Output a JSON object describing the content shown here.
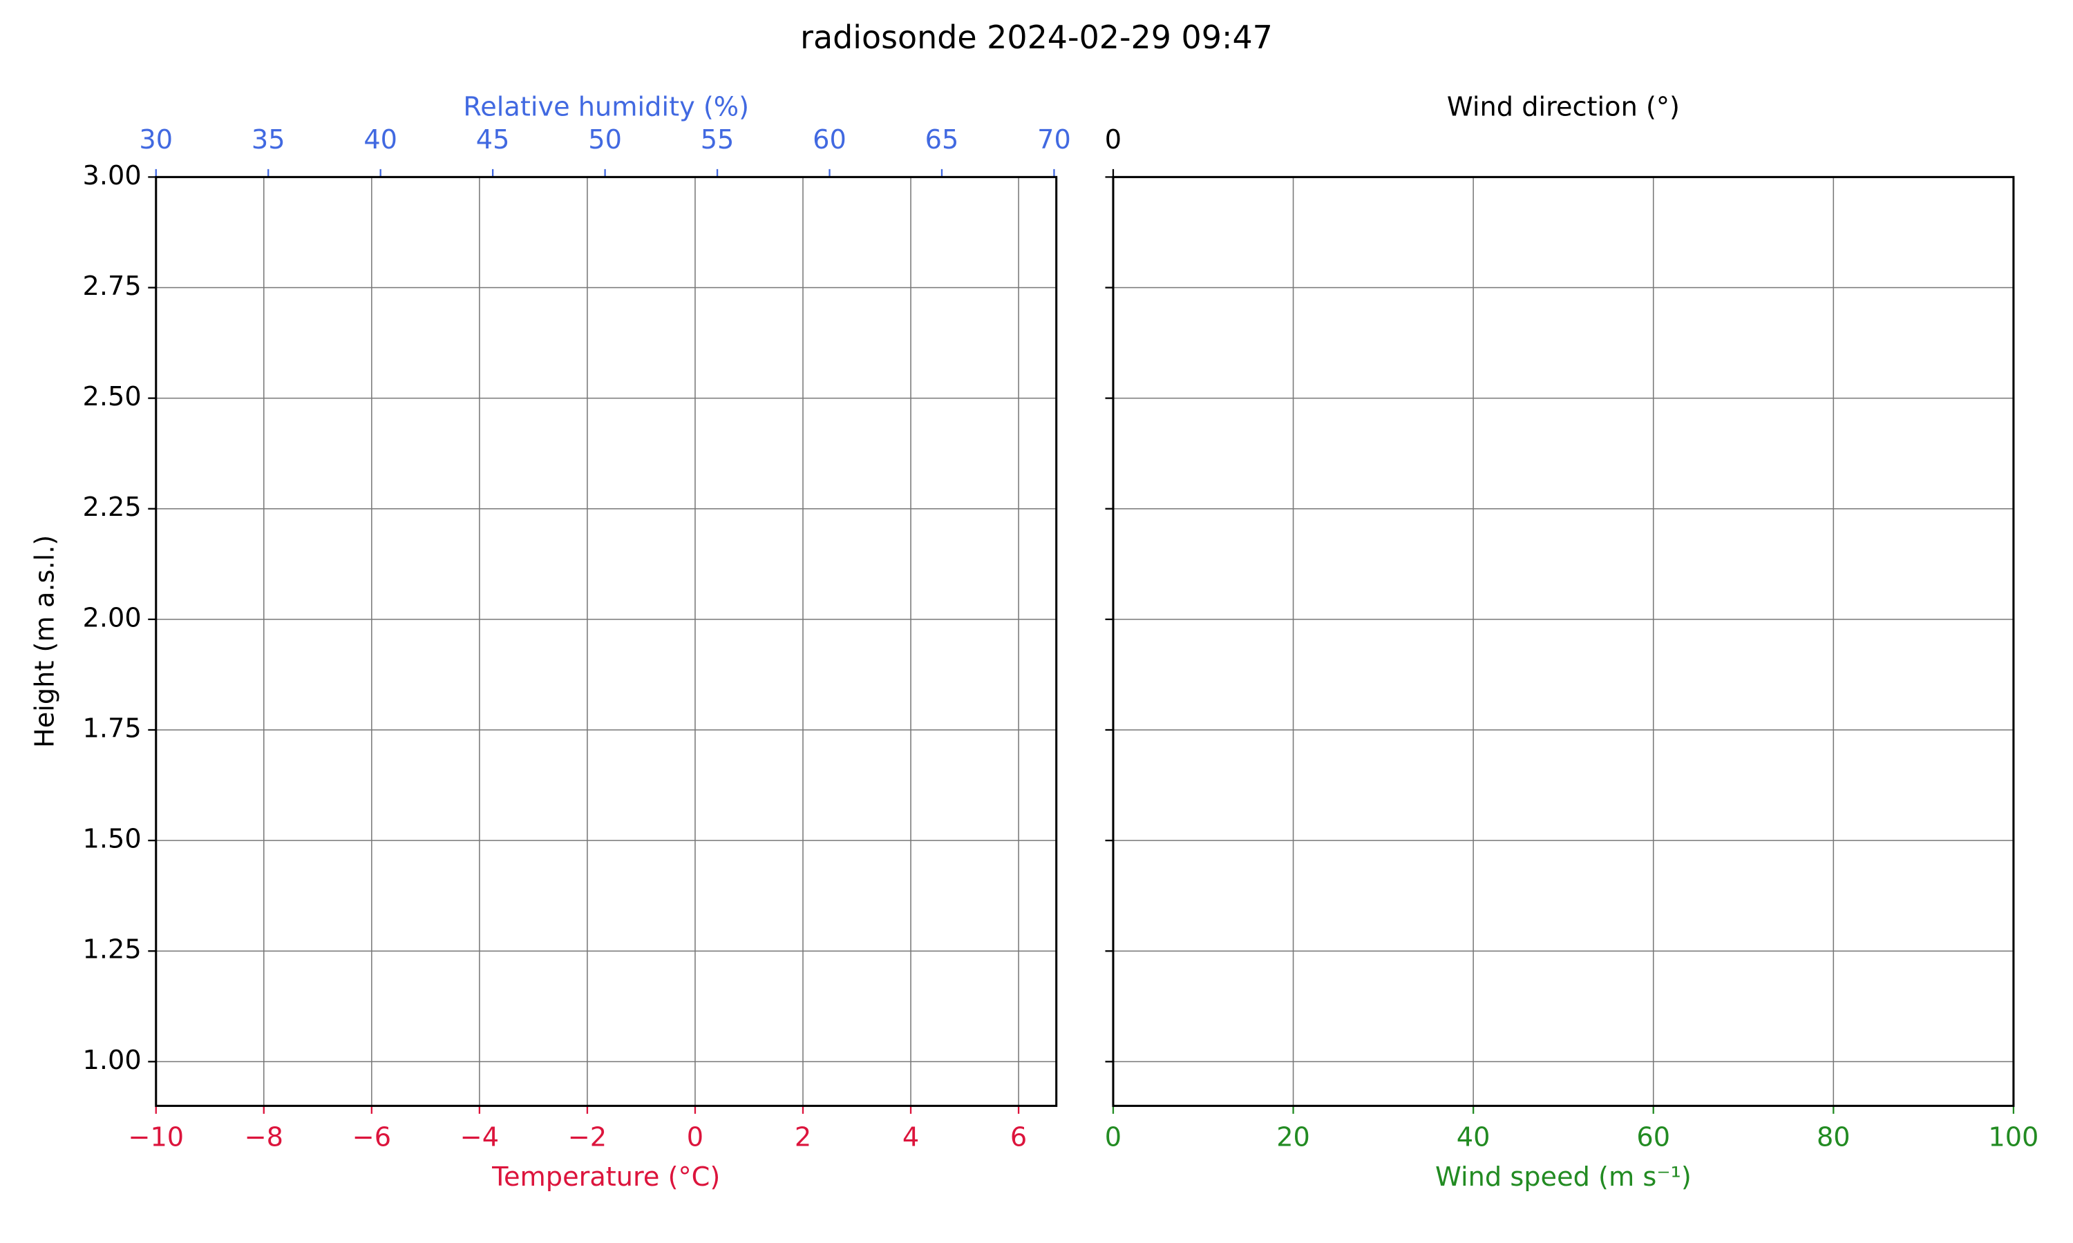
{
  "title": "radiosonde 2024-02-29 09:47",
  "chart_data": [
    {
      "type": "line",
      "grid": true,
      "x_label": "Temperature (°C)",
      "x_color": "#dc143c",
      "xlim": [
        -10,
        6.7
      ],
      "xticks": [
        {
          "value": -10,
          "label": "−10"
        },
        {
          "value": -8,
          "label": "−8"
        },
        {
          "value": -6,
          "label": "−6"
        },
        {
          "value": -4,
          "label": "−4"
        },
        {
          "value": -2,
          "label": "−2"
        },
        0,
        2,
        4,
        6
      ],
      "x2_label": "Relative humidity (%)",
      "x2_color": "#4169e1",
      "x2lim": [
        30,
        70.1
      ],
      "x2ticks": [
        30,
        35,
        40,
        45,
        50,
        55,
        60,
        65,
        70
      ],
      "y_label": "Height (m a.s.l.)",
      "ylim": [
        0.9,
        3.0
      ],
      "yticks": [
        {
          "value": 1,
          "label": "1.00"
        },
        {
          "value": 1.25,
          "label": "1.25"
        },
        {
          "value": 1.5,
          "label": "1.50"
        },
        {
          "value": 1.75,
          "label": "1.75"
        },
        {
          "value": 2,
          "label": "2.00"
        },
        {
          "value": 2.25,
          "label": "2.25"
        },
        {
          "value": 2.5,
          "label": "2.50"
        },
        {
          "value": 2.75,
          "label": "2.75"
        },
        {
          "value": 3,
          "label": "3.00"
        }
      ],
      "ytick_labels": true,
      "series": []
    },
    {
      "type": "line",
      "grid": true,
      "x_label": "Wind speed (m s⁻¹)",
      "x_color": "#228b22",
      "xlim": [
        0,
        100
      ],
      "xticks": [
        0,
        20,
        40,
        60,
        80,
        100
      ],
      "x2_label": "Wind direction (°)",
      "x2_color": "#000000",
      "x2lim": [
        0,
        360
      ],
      "x2ticks": [
        0
      ],
      "ylim": [
        0.9,
        3.0
      ],
      "yticks": [
        1,
        1.25,
        1.5,
        1.75,
        2,
        2.25,
        2.5,
        2.75,
        3
      ],
      "ytick_labels": false,
      "series": []
    }
  ]
}
